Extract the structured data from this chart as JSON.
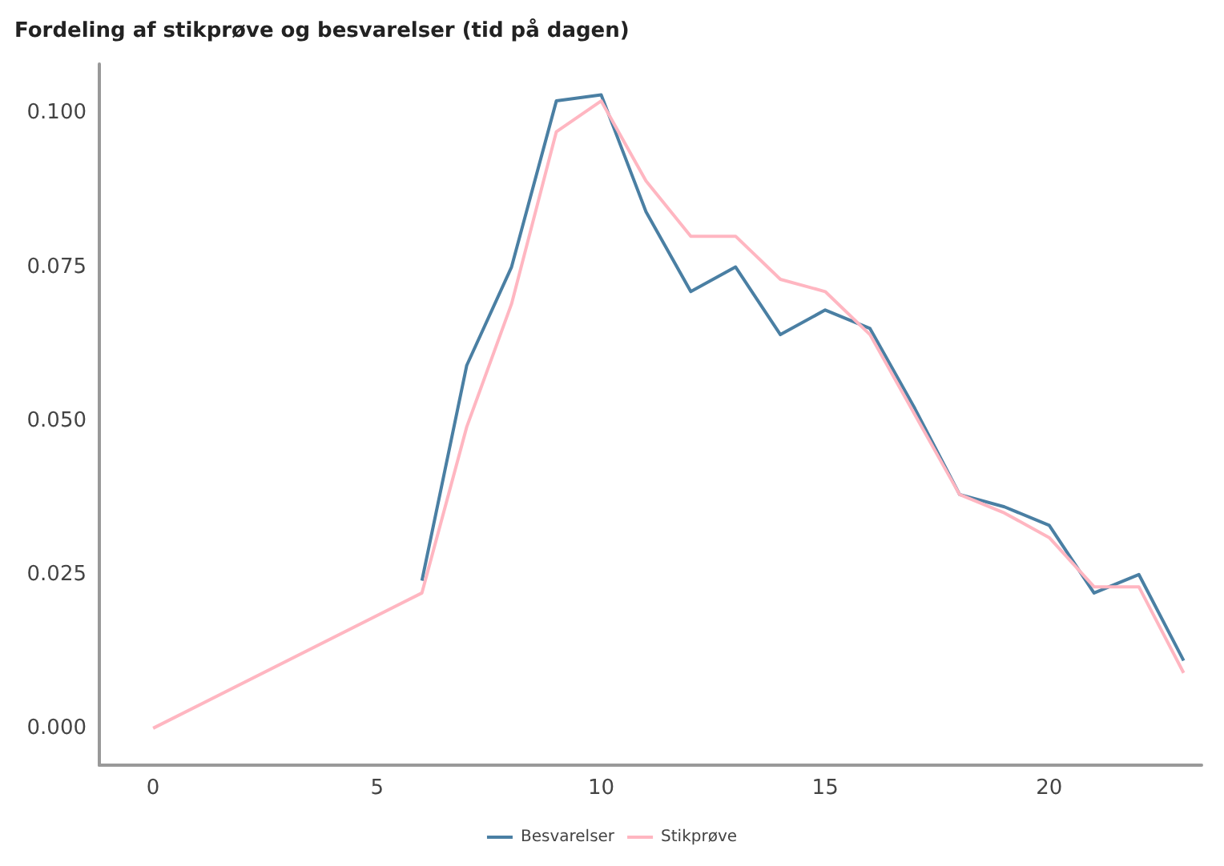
{
  "chart_data": {
    "type": "line",
    "title": "Fordeling af stikprøve og besvarelser (tid på dagen)",
    "series": [
      {
        "name": "Besvarelser",
        "color": "#4a7fa3",
        "x": [
          6,
          7,
          8,
          9,
          10,
          11,
          12,
          13,
          14,
          15,
          16,
          17,
          18,
          19,
          20,
          21,
          22,
          23
        ],
        "values": [
          0.024,
          0.059,
          0.075,
          0.102,
          0.103,
          0.084,
          0.071,
          0.075,
          0.064,
          0.068,
          0.065,
          0.052,
          0.038,
          0.036,
          0.033,
          0.022,
          0.025,
          0.011
        ]
      },
      {
        "name": "Stikprøve",
        "color": "#ffb6c1",
        "x": [
          0,
          6,
          7,
          8,
          9,
          10,
          11,
          12,
          13,
          14,
          15,
          16,
          17,
          18,
          19,
          20,
          21,
          22,
          23
        ],
        "values": [
          0.0,
          0.022,
          0.049,
          0.069,
          0.097,
          0.102,
          0.089,
          0.08,
          0.08,
          0.073,
          0.071,
          0.064,
          0.051,
          0.038,
          0.035,
          0.031,
          0.023,
          0.023,
          0.009
        ]
      }
    ],
    "xlim": [
      -1.2,
      23.4
    ],
    "xticks": [
      0,
      5,
      10,
      15,
      20
    ],
    "ylim": [
      -0.006,
      0.108
    ],
    "yticks": [
      {
        "value": 0,
        "label": "0.000"
      },
      {
        "value": 0.025,
        "label": "0.025"
      },
      {
        "value": 0.05,
        "label": "0.050"
      },
      {
        "value": 0.075,
        "label": "0.075"
      },
      {
        "value": 0.1,
        "label": "0.100"
      }
    ],
    "grid": false,
    "legend": "bottom",
    "marker": "none",
    "line_style": "solid"
  }
}
